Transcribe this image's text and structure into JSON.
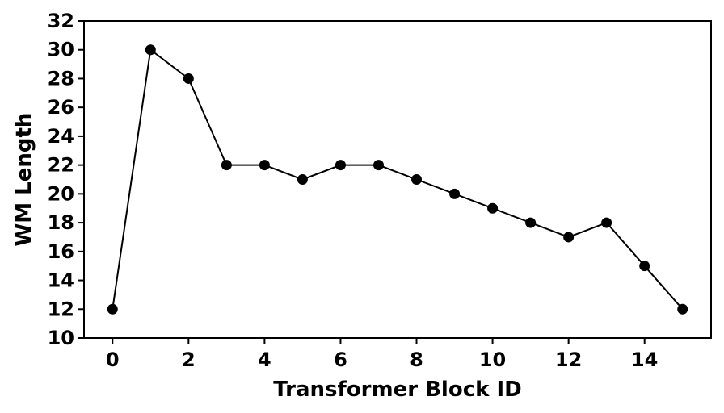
{
  "chart_data": {
    "type": "line",
    "title": "",
    "xlabel": "Transformer Block ID",
    "ylabel": "WM Length",
    "xlim": [
      -0.75,
      15.75
    ],
    "ylim": [
      10,
      32
    ],
    "xticks": [
      0,
      2,
      4,
      6,
      8,
      10,
      12,
      14
    ],
    "yticks": [
      10,
      12,
      14,
      16,
      18,
      20,
      22,
      24,
      26,
      28,
      30,
      32
    ],
    "grid": false,
    "legend": "none",
    "series": [
      {
        "x": [
          0,
          1,
          2,
          3,
          4,
          5,
          6,
          7,
          8,
          9,
          10,
          11,
          12,
          13,
          14,
          15
        ],
        "values": [
          12,
          30,
          28,
          22,
          22,
          21,
          22,
          22,
          21,
          20,
          19,
          18,
          17,
          18,
          15,
          12
        ],
        "color": "#000000",
        "marker": "circle"
      }
    ]
  }
}
